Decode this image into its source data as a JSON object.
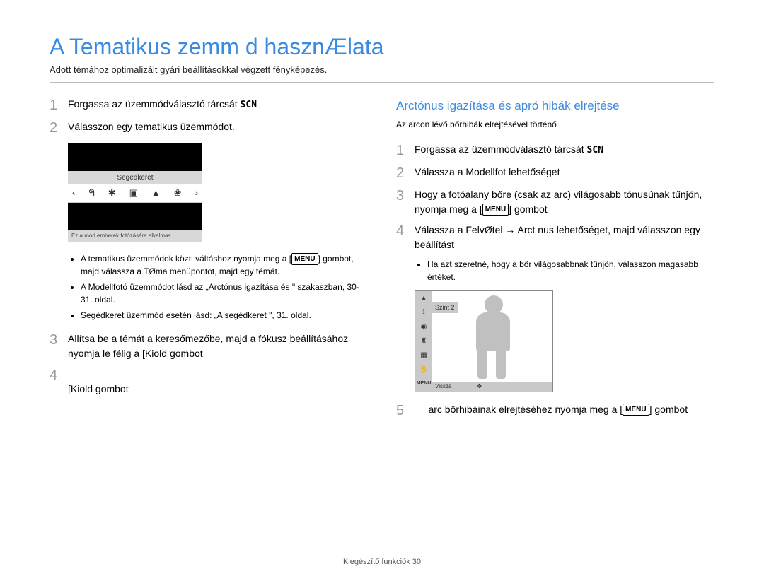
{
  "title": "A Tematikus  zemm d hasznÆlata",
  "subtitle": "Adott témához optimalizált gyári beállításokkal végzett fényképezés.",
  "left": {
    "step1": "Forgassa az üzemmódválasztó tárcsát ",
    "scn1": "SCN",
    "step2": "Válasszon egy tematikus üzemmódot.",
    "screen": {
      "label": "Segédkeret",
      "footer": "Ez a mód emberek fotózására alkalmas.",
      "icons": [
        "‹",
        "ᖗ",
        "✱",
        "▣",
        "▲",
        "❀",
        "›"
      ]
    },
    "bullets": [
      "A tematikus üzemmódok közti váltáshoz nyomja meg a [MENU] gombot, majd válassza a TØma menüpontot, majd egy témát.",
      "A Modellfotó üzemmódot lásd az „Arctónus igazítása és \" szakaszban, 30-31. oldal.",
      "Segédkeret üzemmód esetén lásd: „A segédkeret \", 31. oldal."
    ],
    "step3": "Állítsa be a témát a keresőmezőbe, majd a fókusz beállításához nyomja le félig a [Kiold gombot",
    "step4_body": "[Kiold gombot"
  },
  "right": {
    "heading": "Arctónus igazítása és apró hibák elrejtése",
    "sub": "Az arcon lévő bőrhibák elrejtésével történő",
    "step1": "Forgassa az üzemmódválasztó tárcsát ",
    "scn1": "SCN",
    "step2": "Válassza a Modellfot     lehetőséget",
    "step3": "Hogy a fotóalany bőre (csak az arc) világosabb tónusúnak tűnjön, nyomja meg a [MENU] gombot",
    "step4": "Válassza a FelvØtel → Arct nus lehetőséget, majd válasszon egy beállítást",
    "bullet": "Ha azt szeretné, hogy a bőr világosabbnak tűnjön, válasszon magasabb értéket.",
    "screen": {
      "level": "Szint 2",
      "back": "Vissza",
      "menu": "MENU"
    },
    "step5": "     arc bőrhibáinak elrejtéséhez nyomja meg a [MENU] gombot"
  },
  "footer": "Kiegészítő funkciók  30"
}
